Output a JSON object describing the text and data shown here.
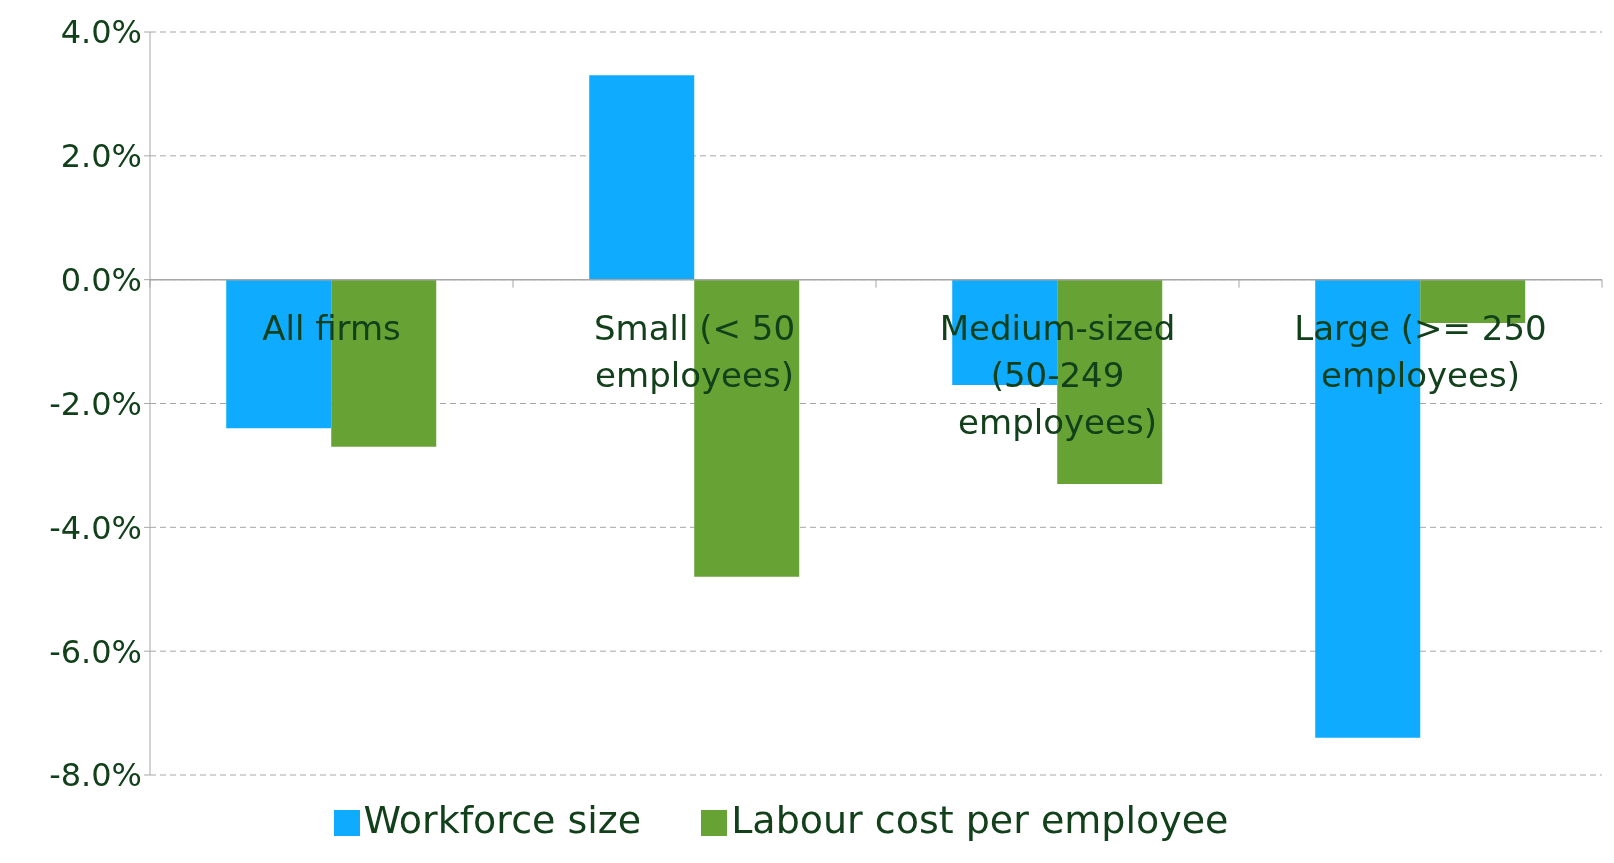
{
  "chart_data": {
    "type": "bar",
    "categories": [
      "All firms",
      "Small (< 50 employees)",
      "Medium-sized (50-249 employees)",
      "Large (>= 250 employees)"
    ],
    "series": [
      {
        "name": "Workforce size",
        "color": "#0eabff",
        "values": [
          -2.4,
          3.3,
          -1.7,
          -7.4
        ]
      },
      {
        "name": "Labour cost per employee",
        "color": "#66a334",
        "values": [
          -2.7,
          -4.8,
          -3.3,
          -0.7
        ]
      }
    ],
    "ylim": [
      -8,
      4
    ],
    "yticks": [
      {
        "value": -8,
        "label": "-8.0%"
      },
      {
        "value": -6,
        "label": "-6.0%"
      },
      {
        "value": -4,
        "label": "-4.0%"
      },
      {
        "value": -2,
        "label": "-2.0%"
      },
      {
        "value": 0,
        "label": "0.0%"
      },
      {
        "value": 2,
        "label": "2.0%"
      },
      {
        "value": 4,
        "label": "4.0%"
      }
    ],
    "grid": "y",
    "legend": "bottom"
  }
}
